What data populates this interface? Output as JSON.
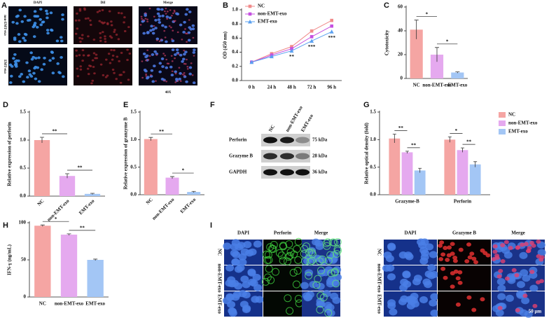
{
  "chart_data": [
    {
      "type": "line",
      "label": "B",
      "categories": [
        "0 h",
        "24 h",
        "48 h",
        "72 h",
        "96 h"
      ],
      "y_label": "OD (450 nm)",
      "ylim": [
        0,
        1
      ],
      "yticks": [
        {
          "value": 0,
          "label": "0.0"
        },
        {
          "value": 0.2,
          "label": "0.2"
        },
        {
          "value": 0.4,
          "label": "0.4"
        },
        {
          "value": 0.6,
          "label": "0.6"
        },
        {
          "value": 0.8,
          "label": "0.8"
        },
        {
          "value": 1,
          "label": "1.0"
        }
      ],
      "series": [
        {
          "name": "NC",
          "color": "#f08a8a",
          "marker": "square",
          "values": [
            0.26,
            0.38,
            0.48,
            0.7,
            0.85
          ]
        },
        {
          "name": "non-EMT-exo",
          "color": "#c44fe0",
          "marker": "square",
          "values": [
            0.26,
            0.36,
            0.45,
            0.62,
            0.77
          ]
        },
        {
          "name": "EMT-exo",
          "color": "#5aa0f0",
          "marker": "triangle",
          "values": [
            0.26,
            0.34,
            0.42,
            0.56,
            0.69
          ]
        }
      ],
      "annotations": [
        null,
        null,
        "**",
        "***",
        "***"
      ]
    },
    {
      "type": "bar",
      "label": "C",
      "categories": [
        "NC",
        "non-EMT-exo",
        "EMT-exo"
      ],
      "y_label": "Cytotoxicity",
      "values": [
        41,
        20,
        5
      ],
      "errors": [
        8,
        6,
        0.5
      ],
      "colors": [
        "#f5a5a3",
        "#e5a9ef",
        "#a3c6f5"
      ],
      "ylim": [
        0,
        60
      ],
      "yticks": [
        0,
        20,
        40,
        60
      ],
      "annotations": [
        "*",
        "*"
      ]
    },
    {
      "type": "bar",
      "label": "D",
      "categories": [
        "NC",
        "non-EMT-exo",
        "EMT-exo"
      ],
      "y_label": "Relative expression  of perforin",
      "values": [
        1.0,
        0.36,
        0.04
      ],
      "errors": [
        0.05,
        0.04,
        0.01
      ],
      "colors": [
        "#f5a5a3",
        "#e5a9ef",
        "#a3c6f5"
      ],
      "ylim": [
        0,
        1.5
      ],
      "yticks": [
        {
          "value": 0,
          "label": "0.0"
        },
        {
          "value": 0.5,
          "label": "0.5"
        },
        {
          "value": 1,
          "label": "1.0"
        },
        {
          "value": 1.5,
          "label": "1.5"
        }
      ],
      "annotations": [
        "**",
        "**"
      ]
    },
    {
      "type": "bar",
      "label": "E",
      "categories": [
        "NC",
        "non-EMT-exo",
        "EMT-exo"
      ],
      "y_label": "Relative expression of granzyme B",
      "values": [
        1.01,
        0.31,
        0.05
      ],
      "errors": [
        0.03,
        0.02,
        0.01
      ],
      "colors": [
        "#f5a5a3",
        "#e5a9ef",
        "#a3c6f5"
      ],
      "ylim": [
        0,
        1.5
      ],
      "yticks": [
        {
          "value": 0,
          "label": "0.0"
        },
        {
          "value": 0.5,
          "label": "0.5"
        },
        {
          "value": 1,
          "label": "1.0"
        },
        {
          "value": 1.5,
          "label": "1.5"
        }
      ],
      "annotations": [
        "**",
        "*"
      ]
    },
    {
      "type": "grouped_bar",
      "label": "G",
      "categories": [
        "Grazyme-B",
        "Perforin"
      ],
      "y_label": "Relative optical density (fold)",
      "series": [
        {
          "name": "NC",
          "color": "#f5a5a3",
          "values": [
            1.02,
            1.0
          ],
          "errors": [
            0.08,
            0.05
          ]
        },
        {
          "name": "non-EMT-exo",
          "color": "#e5a9ef",
          "values": [
            0.77,
            0.81
          ],
          "errors": [
            0.02,
            0.04
          ]
        },
        {
          "name": "EMT-exo",
          "color": "#a3c6f5",
          "values": [
            0.44,
            0.55
          ],
          "errors": [
            0.04,
            0.05
          ]
        }
      ],
      "ylim": [
        0,
        1.5
      ],
      "yticks": [
        {
          "value": 0,
          "label": "0.0"
        },
        {
          "value": 0.5,
          "label": "0.5"
        },
        {
          "value": 1,
          "label": "1.0"
        },
        {
          "value": 1.5,
          "label": "1.5"
        }
      ],
      "annotations": [
        [
          "**",
          "**"
        ],
        [
          "*",
          "**"
        ]
      ]
    },
    {
      "type": "bar",
      "label": "H",
      "categories": [
        "NC",
        "non-EMT-exo",
        "EMT-exo"
      ],
      "y_label": "IFN-γ (ng/mL)",
      "values": [
        96,
        84,
        50
      ],
      "errors": [
        1,
        1,
        1
      ],
      "colors": [
        "#f5a5a3",
        "#e5a9ef",
        "#a3c6f5"
      ],
      "ylim": [
        0,
        100
      ],
      "yticks": [
        0,
        50,
        100
      ],
      "annotations": [
        "*",
        "**"
      ]
    }
  ],
  "panels": {
    "A": {
      "label": "A",
      "columns": [
        "DAPI",
        "DiI",
        "Merge"
      ],
      "rows": [
        "non-EMT-exo",
        "EMT-exo"
      ],
      "magnification": "40X"
    },
    "F": {
      "label": "F",
      "columns": [
        "NC",
        "non-EMT-exo",
        "EMT-exo"
      ],
      "rows": [
        "Perforin",
        "Grazyme B",
        "GAPDH"
      ],
      "sizes": [
        "75 kDa",
        "28 kDa",
        "36 kDa"
      ]
    },
    "I": {
      "label": "I",
      "left": {
        "columns": [
          "DAPI",
          "Perforin",
          "Merge"
        ],
        "rows": [
          "NC",
          "non-EMT-exo",
          "EMT-exo"
        ]
      },
      "right": {
        "columns": [
          "DAPI",
          "Grazyme B",
          "Merge"
        ],
        "rows": [
          "NC",
          "non-EMT-exo",
          "EMT-exo"
        ]
      },
      "scale_bar": "50 μm"
    }
  }
}
